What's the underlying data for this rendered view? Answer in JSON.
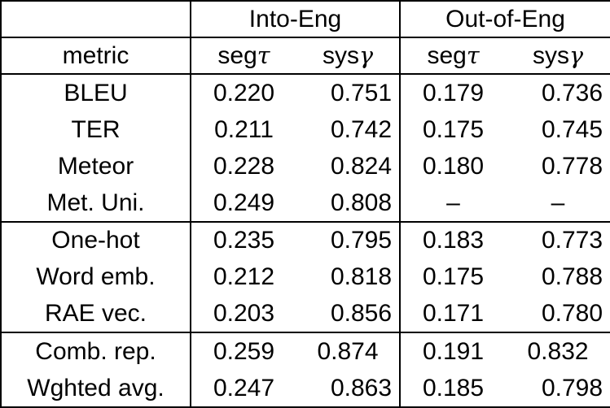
{
  "page": {
    "background_color": "#ffffff",
    "line_color": "#000000"
  },
  "table": {
    "group_headers": {
      "into_eng": "Into-Eng",
      "out_of_eng": "Out-of-Eng"
    },
    "column_headers": {
      "metric": "metric",
      "seg_label": "seg",
      "tau_symbol": "τ",
      "sys_label": "sys",
      "gamma_symbol": "γ"
    },
    "rows": [
      {
        "metric": "BLEU",
        "into_seg": "0.220",
        "into_sys": "0.751",
        "out_seg": "0.179",
        "out_sys": "0.736"
      },
      {
        "metric": "TER",
        "into_seg": "0.211",
        "into_sys": "0.742",
        "out_seg": "0.175",
        "out_sys": "0.745"
      },
      {
        "metric": "Meteor",
        "into_seg": "0.228",
        "into_sys": "0.824",
        "out_seg": "0.180",
        "out_sys": "0.778"
      },
      {
        "metric": "Met. Uni.",
        "into_seg": "0.249",
        "into_sys": "0.808",
        "out_seg": "–",
        "out_sys": "–"
      },
      {
        "metric": "One-hot",
        "into_seg": "0.235",
        "into_sys": "0.795",
        "out_seg": "0.183",
        "out_sys": "0.773"
      },
      {
        "metric": "Word emb.",
        "into_seg": "0.212",
        "into_sys": "0.818",
        "out_seg": "0.175",
        "out_sys": "0.788"
      },
      {
        "metric": "RAE vec.",
        "into_seg": "0.203",
        "into_sys": "0.856",
        "out_seg": "0.171",
        "out_sys": "0.780"
      },
      {
        "metric": "Comb. rep.",
        "into_seg": "0.259",
        "into_sys": "0.874",
        "out_seg": "0.191",
        "out_sys": "0.832"
      },
      {
        "metric": "Wghted avg.",
        "into_seg": "0.247",
        "into_sys": "0.863",
        "out_seg": "0.185",
        "out_sys": "0.798"
      }
    ]
  }
}
